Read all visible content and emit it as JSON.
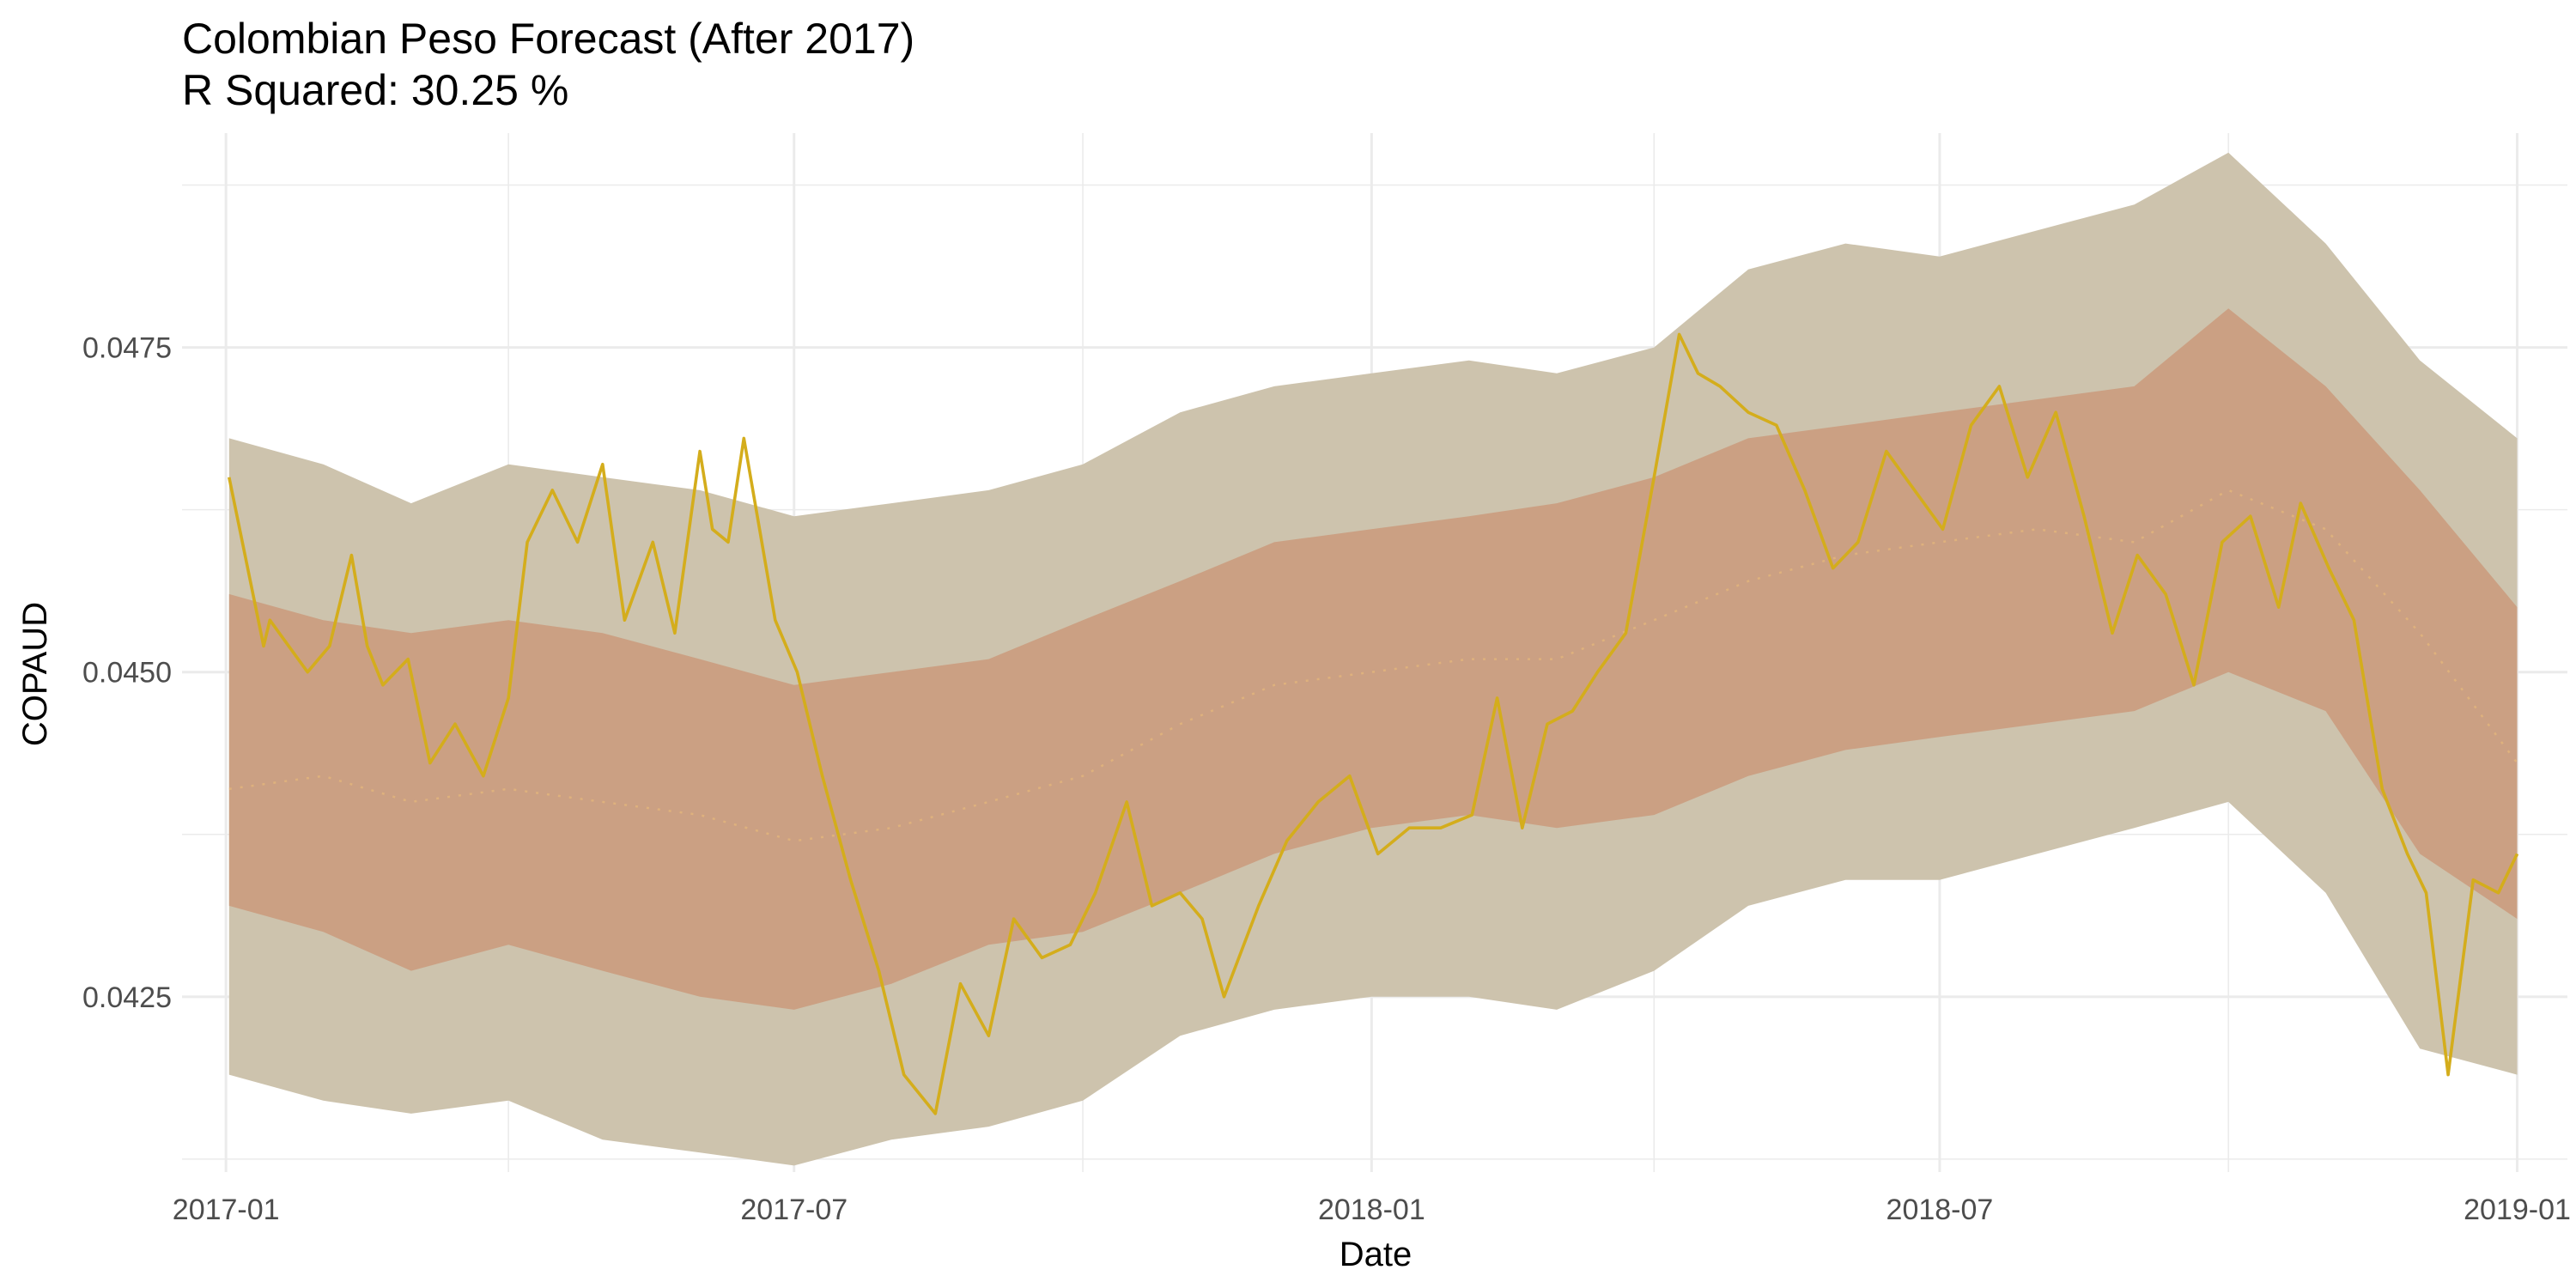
{
  "chart_data": {
    "type": "line",
    "title": "Colombian Peso Forecast (After 2017)",
    "subtitle": "R Squared: 30.25 %",
    "xlabel": "Date",
    "ylabel": "COPAUD",
    "x_ticks": [
      "2017-01",
      "2017-07",
      "2018-01",
      "2018-07",
      "2019-01"
    ],
    "y_ticks": [
      "0.0425",
      "0.0450",
      "0.0475"
    ],
    "xlim": [
      "2016-12-18",
      "2019-01-17"
    ],
    "ylim": [
      0.04115,
      0.04915
    ],
    "grid": true,
    "colors": {
      "outer_band": "#cdc3ad",
      "inner_band": "#cba083",
      "actual_line": "#d4ad1c",
      "forecast_line": "#e0b27c",
      "gridline": "#ebebeb"
    },
    "series": [
      {
        "role": "actual",
        "x": [
          "2017-01-02",
          "2017-01-13",
          "2017-01-15",
          "2017-01-27",
          "2017-02-03",
          "2017-02-10",
          "2017-02-15",
          "2017-02-20",
          "2017-02-28",
          "2017-03-07",
          "2017-03-15",
          "2017-03-24",
          "2017-04-01",
          "2017-04-07",
          "2017-04-15",
          "2017-04-23",
          "2017-05-01",
          "2017-05-08",
          "2017-05-17",
          "2017-05-24",
          "2017-06-01",
          "2017-06-05",
          "2017-06-10",
          "2017-06-15",
          "2017-06-20",
          "2017-06-25",
          "2017-07-02",
          "2017-07-10",
          "2017-07-19",
          "2017-07-28",
          "2017-08-05",
          "2017-08-15",
          "2017-08-23",
          "2017-09-01",
          "2017-09-09",
          "2017-09-18",
          "2017-09-27",
          "2017-10-05",
          "2017-10-15",
          "2017-10-23",
          "2017-11-01",
          "2017-11-08",
          "2017-11-15",
          "2017-11-26",
          "2017-12-05",
          "2017-12-15",
          "2017-12-25",
          "2018-01-03",
          "2018-01-13",
          "2018-01-23",
          "2018-02-02",
          "2018-02-10",
          "2018-02-18",
          "2018-02-26",
          "2018-03-06",
          "2018-03-14",
          "2018-03-23",
          "2018-04-01",
          "2018-04-09",
          "2018-04-15",
          "2018-04-22",
          "2018-05-01",
          "2018-05-10",
          "2018-05-19",
          "2018-05-28",
          "2018-06-05",
          "2018-06-14",
          "2018-06-23",
          "2018-07-02",
          "2018-07-11",
          "2018-07-20",
          "2018-07-29",
          "2018-08-07",
          "2018-08-16",
          "2018-08-25",
          "2018-09-02",
          "2018-09-11",
          "2018-09-20",
          "2018-09-29",
          "2018-10-08",
          "2018-10-17",
          "2018-10-24",
          "2018-11-02",
          "2018-11-10",
          "2018-11-19",
          "2018-11-27",
          "2018-12-03",
          "2018-12-10",
          "2018-12-18",
          "2018-12-26",
          "2019-01-01"
        ],
        "values": [
          0.0465,
          0.0452,
          0.0454,
          0.045,
          0.0452,
          0.0459,
          0.0452,
          0.0449,
          0.0451,
          0.0443,
          0.0446,
          0.0442,
          0.0448,
          0.046,
          0.0464,
          0.046,
          0.0466,
          0.0454,
          0.046,
          0.0453,
          0.0467,
          0.0461,
          0.046,
          0.0468,
          0.0461,
          0.0454,
          0.045,
          0.0442,
          0.0434,
          0.0427,
          0.0419,
          0.0416,
          0.0426,
          0.0422,
          0.0431,
          0.0428,
          0.0429,
          0.0433,
          0.044,
          0.0432,
          0.0433,
          0.0431,
          0.0425,
          0.0432,
          0.0437,
          0.044,
          0.0442,
          0.0436,
          0.0438,
          0.0438,
          0.0439,
          0.0448,
          0.0438,
          0.0446,
          0.0447,
          0.045,
          0.0453,
          0.0465,
          0.0476,
          0.0473,
          0.0472,
          0.047,
          0.0469,
          0.0464,
          0.0458,
          0.046,
          0.0467,
          0.0464,
          0.0461,
          0.0469,
          0.0472,
          0.0465,
          0.047,
          0.0462,
          0.0453,
          0.0459,
          0.0456,
          0.0449,
          0.046,
          0.0462,
          0.0455,
          0.0463,
          0.0458,
          0.0454,
          0.0441,
          0.0436,
          0.0433,
          0.0419,
          0.0434,
          0.0433,
          0.0436
        ]
      },
      {
        "role": "forecast",
        "x": [
          "2017-01-02",
          "2017-02-01",
          "2017-03-01",
          "2017-04-01",
          "2017-05-01",
          "2017-06-01",
          "2017-07-01",
          "2017-08-01",
          "2017-09-01",
          "2017-10-01",
          "2017-11-01",
          "2017-12-01",
          "2018-01-01",
          "2018-02-01",
          "2018-03-01",
          "2018-04-01",
          "2018-05-01",
          "2018-06-01",
          "2018-07-01",
          "2018-08-01",
          "2018-09-01",
          "2018-10-01",
          "2018-11-01",
          "2018-12-01",
          "2019-01-01"
        ],
        "values": [
          0.0441,
          0.0442,
          0.044,
          0.0441,
          0.044,
          0.0439,
          0.0437,
          0.0438,
          0.044,
          0.0442,
          0.0446,
          0.0449,
          0.045,
          0.0451,
          0.0451,
          0.0454,
          0.0457,
          0.0459,
          0.046,
          0.0461,
          0.046,
          0.0464,
          0.0461,
          0.0453,
          0.0443
        ]
      },
      {
        "role": "band_80",
        "x": [
          "2017-01-02",
          "2017-02-01",
          "2017-03-01",
          "2017-04-01",
          "2017-05-01",
          "2017-06-01",
          "2017-07-01",
          "2017-08-01",
          "2017-09-01",
          "2017-10-01",
          "2017-11-01",
          "2017-12-01",
          "2018-01-01",
          "2018-02-01",
          "2018-03-01",
          "2018-04-01",
          "2018-05-01",
          "2018-06-01",
          "2018-07-01",
          "2018-08-01",
          "2018-09-01",
          "2018-10-01",
          "2018-11-01",
          "2018-12-01",
          "2019-01-01"
        ],
        "upper": [
          0.0456,
          0.0454,
          0.0453,
          0.0454,
          0.0453,
          0.0451,
          0.0449,
          0.045,
          0.0451,
          0.0454,
          0.0457,
          0.046,
          0.0461,
          0.0462,
          0.0463,
          0.0465,
          0.0468,
          0.0469,
          0.047,
          0.0471,
          0.0472,
          0.0478,
          0.0472,
          0.0464,
          0.0455
        ],
        "lower": [
          0.0432,
          0.043,
          0.0427,
          0.0429,
          0.0427,
          0.0425,
          0.0424,
          0.0426,
          0.0429,
          0.043,
          0.0433,
          0.0436,
          0.0438,
          0.0439,
          0.0438,
          0.0439,
          0.0442,
          0.0444,
          0.0445,
          0.0446,
          0.0447,
          0.045,
          0.0447,
          0.0436,
          0.0431
        ]
      },
      {
        "role": "band_95",
        "x": [
          "2017-01-02",
          "2017-02-01",
          "2017-03-01",
          "2017-04-01",
          "2017-05-01",
          "2017-06-01",
          "2017-07-01",
          "2017-08-01",
          "2017-09-01",
          "2017-10-01",
          "2017-11-01",
          "2017-12-01",
          "2018-01-01",
          "2018-02-01",
          "2018-03-01",
          "2018-04-01",
          "2018-05-01",
          "2018-06-01",
          "2018-07-01",
          "2018-08-01",
          "2018-09-01",
          "2018-10-01",
          "2018-11-01",
          "2018-12-01",
          "2019-01-01"
        ],
        "upper": [
          0.0468,
          0.0466,
          0.0463,
          0.0466,
          0.0465,
          0.0464,
          0.0462,
          0.0463,
          0.0464,
          0.0466,
          0.047,
          0.0472,
          0.0473,
          0.0474,
          0.0473,
          0.0475,
          0.0481,
          0.0483,
          0.0482,
          0.0484,
          0.0486,
          0.049,
          0.0483,
          0.0474,
          0.0468
        ],
        "lower": [
          0.0419,
          0.0417,
          0.0416,
          0.0417,
          0.0414,
          0.0413,
          0.0412,
          0.0414,
          0.0415,
          0.0417,
          0.0422,
          0.0424,
          0.0425,
          0.0425,
          0.0424,
          0.0427,
          0.0432,
          0.0434,
          0.0434,
          0.0436,
          0.0438,
          0.044,
          0.0433,
          0.0421,
          0.0419
        ]
      }
    ]
  }
}
